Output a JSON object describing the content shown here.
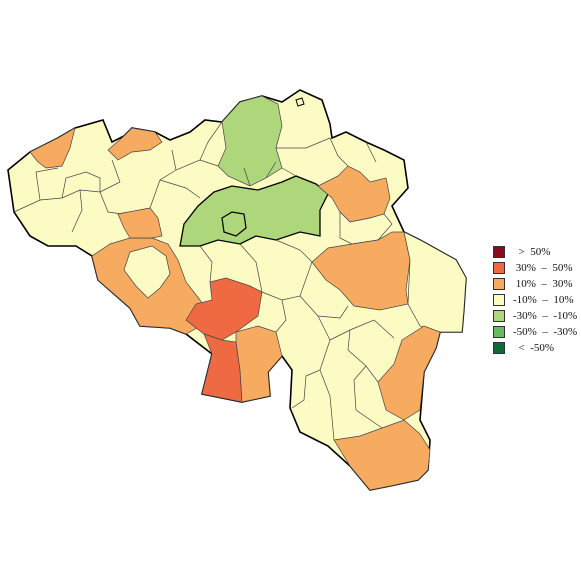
{
  "map": {
    "country": "Belgium",
    "region_classes": {
      "west_coast": "-10% – 10%",
      "west_coast_nw": "10% – 30%",
      "west_flanders_middle": "-10% – 10%",
      "north_east": "-10% – 10%",
      "antwerp_north": "-30% – -10%",
      "brussels_band": "-30% – -10%",
      "brussels_core": "-30% – -10%",
      "hainaut_west": "10% – 30%",
      "hainaut_center": "30% – 50%",
      "hainaut_south": "30% – 50%",
      "namur_north": "-10% – 10%",
      "liege_west": "10% – 30%",
      "liege_east": "10% – 30%",
      "east_cantons": "-10% – 10%",
      "luxembourg_north": "-10% – 10%",
      "luxembourg_east_strip": "10% – 30%",
      "luxembourg_south": "10% – 30%",
      "namur_south": "-10% – 10%",
      "limburg_east": "-10% – 10%",
      "limburg_south": "10% – 30%"
    }
  },
  "legend": {
    "items": [
      {
        "label": "  >  50%",
        "color": "#8b0a1e"
      },
      {
        "label": " 30%  –  50%",
        "color": "#ef6a43"
      },
      {
        "label": " 10%  –  30%",
        "color": "#f7ab60"
      },
      {
        "label": "-10%  –  10%",
        "color": "#fdfbc4"
      },
      {
        "label": "-30%  –  -10%",
        "color": "#aed67b"
      },
      {
        "label": "-50%  –  -30%",
        "color": "#68bb63"
      },
      {
        "label": "  <  -50%",
        "color": "#0e6b33"
      }
    ]
  },
  "colors": {
    "outline": "#000000",
    "inner_border": "#444444"
  }
}
